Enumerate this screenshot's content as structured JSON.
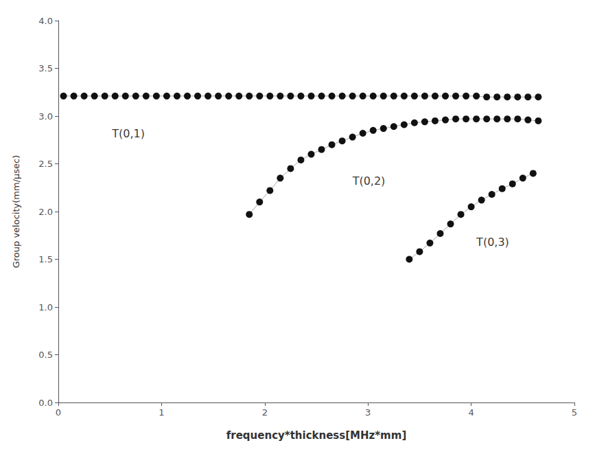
{
  "chart_data": {
    "type": "line",
    "xlabel": "frequency*thickness[MHz*mm]",
    "ylabel": "Group velocity(mm/μsec)",
    "xlim": [
      0,
      5
    ],
    "ylim": [
      0.0,
      4.0
    ],
    "xticks": [
      0,
      1,
      2,
      3,
      4,
      5
    ],
    "yticks": [
      {
        "value": 0.0,
        "label": "0.0"
      },
      0.5,
      {
        "value": 1.0,
        "label": "1.0"
      },
      1.5,
      {
        "value": 2.0,
        "label": "2.0"
      },
      2.5,
      {
        "value": 3.0,
        "label": "3.0"
      },
      3.5,
      {
        "value": 4.0,
        "label": "4.0"
      }
    ],
    "grid": false,
    "series": [
      {
        "color": "#111111",
        "marker": "circle",
        "line_style": "solid",
        "x": [
          0.05,
          0.15,
          0.25,
          0.35,
          0.45,
          0.55,
          0.65,
          0.75,
          0.85,
          0.95,
          1.05,
          1.15,
          1.25,
          1.35,
          1.45,
          1.55,
          1.65,
          1.75,
          1.85,
          1.95,
          2.05,
          2.15,
          2.25,
          2.35,
          2.45,
          2.55,
          2.65,
          2.75,
          2.85,
          2.95,
          3.05,
          3.15,
          3.25,
          3.35,
          3.45,
          3.55,
          3.65,
          3.75,
          3.85,
          3.95,
          4.05,
          4.15,
          4.25,
          4.35,
          4.45,
          4.55,
          4.65
        ],
        "values": [
          3.21,
          3.21,
          3.21,
          3.21,
          3.21,
          3.21,
          3.21,
          3.21,
          3.21,
          3.21,
          3.21,
          3.21,
          3.21,
          3.21,
          3.21,
          3.21,
          3.21,
          3.21,
          3.21,
          3.21,
          3.21,
          3.21,
          3.21,
          3.21,
          3.21,
          3.21,
          3.21,
          3.21,
          3.21,
          3.21,
          3.21,
          3.21,
          3.21,
          3.21,
          3.21,
          3.21,
          3.21,
          3.21,
          3.21,
          3.21,
          3.21,
          3.2,
          3.2,
          3.2,
          3.2,
          3.2,
          3.2
        ]
      },
      {
        "color": "#111111",
        "marker": "circle",
        "line_style": "solid",
        "x": [
          1.85,
          1.95,
          2.05,
          2.15,
          2.25,
          2.35,
          2.45,
          2.55,
          2.65,
          2.75,
          2.85,
          2.95,
          3.05,
          3.15,
          3.25,
          3.35,
          3.45,
          3.55,
          3.65,
          3.75,
          3.85,
          3.95,
          4.05,
          4.15,
          4.25,
          4.35,
          4.45,
          4.55,
          4.65
        ],
        "values": [
          1.97,
          2.1,
          2.22,
          2.35,
          2.45,
          2.54,
          2.6,
          2.65,
          2.7,
          2.74,
          2.78,
          2.82,
          2.85,
          2.87,
          2.89,
          2.91,
          2.93,
          2.94,
          2.95,
          2.96,
          2.97,
          2.97,
          2.97,
          2.97,
          2.97,
          2.97,
          2.97,
          2.96,
          2.95
        ]
      },
      {
        "color": "#111111",
        "marker": "circle",
        "line_style": "solid",
        "x": [
          3.4,
          3.5,
          3.6,
          3.7,
          3.8,
          3.9,
          4.0,
          4.1,
          4.2,
          4.3,
          4.4,
          4.5,
          4.6
        ],
        "values": [
          1.5,
          1.58,
          1.67,
          1.77,
          1.87,
          1.97,
          2.05,
          2.12,
          2.18,
          2.24,
          2.29,
          2.35,
          2.4
        ]
      }
    ],
    "annotations": [
      {
        "text": "T(0,1)",
        "x": 0.52,
        "y": 2.82
      },
      {
        "text": "T(0,2)",
        "x": 2.85,
        "y": 2.32
      },
      {
        "text": "T(0,3)",
        "x": 4.05,
        "y": 1.68
      }
    ]
  }
}
